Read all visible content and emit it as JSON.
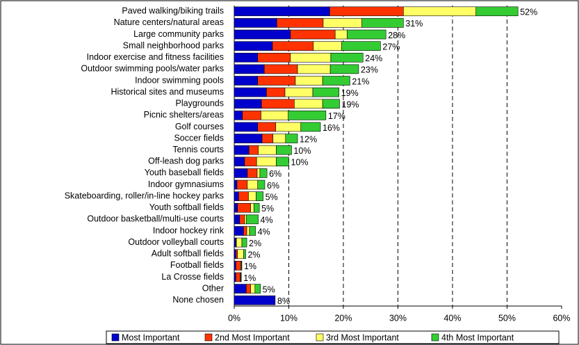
{
  "chart_data": {
    "type": "stacked_barh",
    "categories": [
      "Paved walking/biking trails",
      "Nature centers/natural areas",
      "Large community parks",
      "Small neighborhood parks",
      "Indoor exercise and fitness facilities",
      "Outdoor swimming pools/water parks",
      "Indoor swimming pools",
      "Historical sites and museums",
      "Playgrounds",
      "Picnic shelters/areas",
      "Golf courses",
      "Soccer fields",
      "Tennis courts",
      "Off-leash dog parks",
      "Youth baseball fields",
      "Indoor gymnasiums",
      "Skateboarding, roller/in-line hockey parks",
      "Youth softball fields",
      "Outdoor basketball/multi-use courts",
      "Indoor hockey rink",
      "Outdoor volleyball courts",
      "Adult softball fields",
      "Football fields",
      "La Crosse fields",
      "Other",
      "None chosen"
    ],
    "series": [
      {
        "name": "Most Important",
        "color": "#0000cc",
        "values": [
          17.5,
          7.8,
          10.3,
          7.0,
          4.3,
          5.5,
          4.3,
          5.9,
          5.0,
          1.5,
          4.3,
          5.1,
          2.7,
          1.9,
          2.4,
          0.5,
          0.8,
          0.6,
          1.0,
          1.7,
          0.3,
          0.3,
          0.3,
          0.3,
          2.2,
          7.5
        ]
      },
      {
        "name": "2nd Most Important",
        "color": "#ff3300",
        "values": [
          13.5,
          8.5,
          8.2,
          7.5,
          6.0,
          6.1,
          6.9,
          3.4,
          6.0,
          3.4,
          3.3,
          2.0,
          1.7,
          2.2,
          1.8,
          1.9,
          1.8,
          2.4,
          0.9,
          0.6,
          0.1,
          0.3,
          0.9,
          0.8,
          0.8,
          0
        ]
      },
      {
        "name": "3rd Most Important",
        "color": "#ffff66",
        "values": [
          13.3,
          7.1,
          2.2,
          5.2,
          7.4,
          6.0,
          5.0,
          5.1,
          5.2,
          5.0,
          4.6,
          2.3,
          3.3,
          3.6,
          0.5,
          1.9,
          1.4,
          0.6,
          0.3,
          0.5,
          1.0,
          1.1,
          0.1,
          0.1,
          0.8,
          0
        ]
      },
      {
        "name": "4th Most Important",
        "color": "#33cc33",
        "values": [
          7.7,
          7.6,
          7.1,
          7.1,
          5.9,
          5.2,
          5.0,
          4.8,
          3.1,
          6.9,
          3.6,
          2.2,
          2.8,
          2.3,
          1.3,
          1.3,
          1.3,
          1.0,
          2.2,
          1.1,
          0.9,
          0.4,
          0.1,
          0.1,
          1.0,
          0
        ]
      }
    ],
    "bar_labels": [
      "52%",
      "31%",
      "28%",
      "27%",
      "24%",
      "23%",
      "21%",
      "19%",
      "19%",
      "17%",
      "16%",
      "12%",
      "10%",
      "10%",
      "6%",
      "6%",
      "5%",
      "5%",
      "4%",
      "4%",
      "2%",
      "2%",
      "1%",
      "1%",
      "5%",
      "8%"
    ],
    "xlim": [
      0,
      60
    ],
    "xticks": [
      {
        "value": 0,
        "label": "0%"
      },
      {
        "value": 10,
        "label": "10%"
      },
      {
        "value": 20,
        "label": "20%"
      },
      {
        "value": 30,
        "label": "30%"
      },
      {
        "value": 40,
        "label": "40%"
      },
      {
        "value": 50,
        "label": "50%"
      },
      {
        "value": 60,
        "label": "60%"
      }
    ],
    "grid": true,
    "legend": "bottom"
  }
}
